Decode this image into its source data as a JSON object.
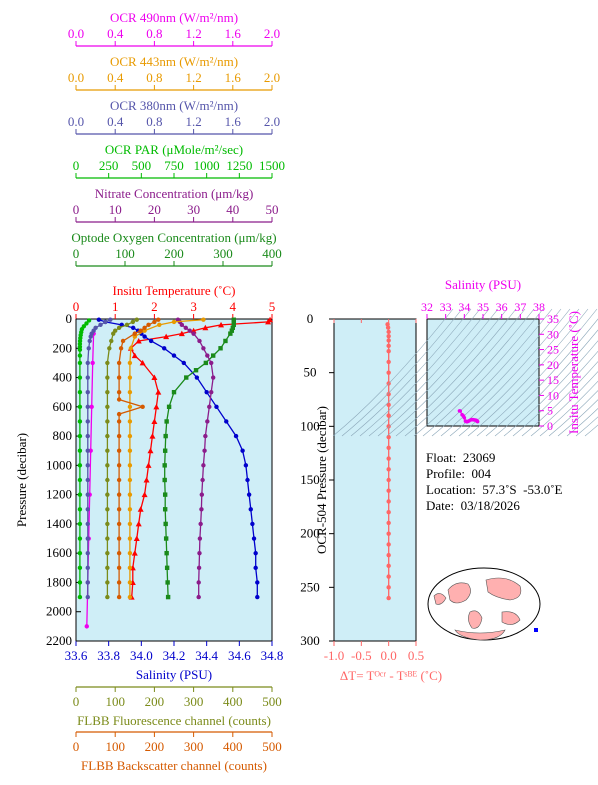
{
  "colors": {
    "panel_bg": "#cfeef7",
    "temperature": "#ff0000",
    "salinity": "#0000cc",
    "oxygen": "#1a8a1a",
    "nitrate": "#8b1c8b",
    "par": "#00bb00",
    "ocr380": "#5555aa",
    "ocr443": "#e89a00",
    "ocr490": "#ee00ee",
    "fluorescence": "#7b8b1a",
    "backscatter": "#d55a00",
    "delta_t": "#ff6666",
    "ts_points": "#ee00ee",
    "land": "#ffb0b0"
  },
  "chart_data": [
    {
      "type": "line",
      "name": "main-profile",
      "ylabel": "Pressure (decibar)",
      "ylim": [
        2200,
        0
      ],
      "yticks": [
        0,
        200,
        400,
        600,
        800,
        1000,
        1200,
        1400,
        1600,
        1800,
        2000,
        2200
      ],
      "axes": [
        {
          "key": "ocr490",
          "label": "OCR 490nm (W/m²/nm)",
          "range": [
            0,
            2
          ],
          "ticks": [
            "0.0",
            "0.4",
            "0.8",
            "1.2",
            "1.6",
            "2.0"
          ]
        },
        {
          "key": "ocr443",
          "label": "OCR 443nm (W/m²/nm)",
          "range": [
            0,
            2
          ],
          "ticks": [
            "0.0",
            "0.4",
            "0.8",
            "1.2",
            "1.6",
            "2.0"
          ]
        },
        {
          "key": "ocr380",
          "label": "OCR 380nm (W/m²/nm)",
          "range": [
            0,
            2
          ],
          "ticks": [
            "0.0",
            "0.4",
            "0.8",
            "1.2",
            "1.6",
            "2.0"
          ]
        },
        {
          "key": "par",
          "label": "OCR PAR (μMole/m²/sec)",
          "range": [
            0,
            1500
          ],
          "ticks": [
            "0",
            "250",
            "500",
            "750",
            "1000",
            "1250",
            "1500"
          ]
        },
        {
          "key": "nitrate",
          "label": "Nitrate Concentration (μm/kg)",
          "range": [
            0,
            50
          ],
          "ticks": [
            "0",
            "10",
            "20",
            "30",
            "40",
            "50"
          ]
        },
        {
          "key": "oxygen",
          "label": "Optode Oxygen Concentration (μm/kg)",
          "range": [
            0,
            400
          ],
          "ticks": [
            "0",
            "100",
            "200",
            "300",
            "400"
          ]
        },
        {
          "key": "temperature",
          "label": "Insitu Temperature (˚C)",
          "range": [
            0,
            5
          ],
          "ticks": [
            "0",
            "1",
            "2",
            "3",
            "4",
            "5"
          ]
        },
        {
          "key": "salinity",
          "label": "Salinity (PSU)",
          "range": [
            33.6,
            34.8
          ],
          "ticks": [
            "33.6",
            "33.8",
            "34.0",
            "34.2",
            "34.4",
            "34.6",
            "34.8"
          ]
        },
        {
          "key": "fluorescence",
          "label": "FLBB Fluorescence channel (counts)",
          "range": [
            0,
            500
          ],
          "ticks": [
            "0",
            "100",
            "200",
            "300",
            "400",
            "500"
          ]
        },
        {
          "key": "backscatter",
          "label": "FLBB Backscatter channel (counts)",
          "range": [
            0,
            500
          ],
          "ticks": [
            "0",
            "100",
            "200",
            "300",
            "400",
            "500"
          ]
        }
      ],
      "series": [
        {
          "key": "temperature",
          "marker": "triangle",
          "pressure": [
            5,
            20,
            40,
            60,
            80,
            100,
            120,
            150,
            200,
            250,
            300,
            400,
            500,
            600,
            700,
            800,
            900,
            1000,
            1100,
            1200,
            1300,
            1400,
            1500,
            1600,
            1700,
            1800,
            1900
          ],
          "values": [
            4.95,
            4.9,
            3.7,
            3.3,
            3.0,
            2.7,
            2.3,
            1.6,
            1.4,
            1.5,
            1.7,
            2.0,
            2.1,
            2.05,
            2.0,
            1.95,
            1.9,
            1.85,
            1.8,
            1.75,
            1.65,
            1.6,
            1.55,
            1.5,
            1.45,
            1.45,
            1.42
          ]
        },
        {
          "key": "salinity",
          "marker": "circle",
          "pressure": [
            5,
            20,
            40,
            60,
            80,
            100,
            120,
            150,
            200,
            250,
            300,
            400,
            500,
            600,
            700,
            800,
            900,
            1000,
            1100,
            1200,
            1300,
            1400,
            1500,
            1600,
            1700,
            1800,
            1900
          ],
          "values": [
            33.74,
            33.78,
            33.88,
            33.95,
            33.98,
            34.0,
            34.02,
            34.06,
            34.14,
            34.2,
            34.26,
            34.34,
            34.4,
            34.46,
            34.52,
            34.58,
            34.62,
            34.64,
            34.65,
            34.66,
            34.67,
            34.68,
            34.69,
            34.7,
            34.7,
            34.71,
            34.71
          ]
        },
        {
          "key": "oxygen",
          "marker": "square",
          "pressure": [
            5,
            20,
            40,
            60,
            80,
            100,
            150,
            200,
            250,
            300,
            350,
            400,
            500,
            600,
            700,
            800,
            900,
            1000,
            1100,
            1200,
            1300,
            1400,
            1500,
            1600,
            1700,
            1800,
            1900
          ],
          "values": [
            322,
            322,
            322,
            320,
            318,
            315,
            305,
            295,
            280,
            265,
            245,
            225,
            200,
            190,
            185,
            183,
            182,
            181,
            181,
            182,
            182,
            183,
            184,
            185,
            186,
            187,
            188
          ]
        },
        {
          "key": "nitrate",
          "marker": "circle",
          "pressure": [
            5,
            20,
            40,
            60,
            80,
            100,
            150,
            200,
            250,
            300,
            400,
            500,
            600,
            700,
            800,
            900,
            1000,
            1100,
            1200,
            1300,
            1400,
            1500,
            1600,
            1700,
            1800,
            1900
          ],
          "values": [
            26,
            26.5,
            27,
            28,
            29,
            30,
            31.5,
            32.5,
            33.5,
            34.5,
            35,
            34.5,
            34,
            33.5,
            33,
            32.8,
            32.5,
            32.3,
            32.1,
            32,
            31.8,
            31.6,
            31.5,
            31.4,
            31.3,
            31.3
          ]
        },
        {
          "key": "par",
          "marker": "circle",
          "pressure": [
            10,
            30,
            50,
            70,
            90,
            110,
            130,
            150,
            170,
            190,
            210,
            250,
            300,
            400,
            500,
            600,
            700,
            800,
            900,
            1000,
            1100,
            1200,
            1300,
            1400,
            1500,
            1600,
            1700,
            1800,
            1900
          ],
          "values": [
            100,
            80,
            60,
            45,
            40,
            36,
            33,
            31,
            30,
            30,
            30,
            30,
            30,
            30,
            30,
            30,
            30,
            30,
            30,
            30,
            30,
            30,
            30,
            30,
            30,
            30,
            30,
            30,
            30
          ]
        },
        {
          "key": "ocr490",
          "marker": "circle",
          "pressure": [
            100,
            300,
            600,
            900,
            1200,
            1500,
            1800,
            2100
          ],
          "values": [
            0.18,
            0.17,
            0.16,
            0.15,
            0.14,
            0.13,
            0.12,
            0.11
          ]
        },
        {
          "key": "ocr443",
          "marker": "circle",
          "pressure": [
            5,
            20,
            40,
            80,
            120,
            200,
            300,
            400,
            500,
            600,
            700,
            800,
            900,
            1000,
            1100,
            1200,
            1300,
            1400,
            1500,
            1600,
            1700,
            1800,
            1900
          ],
          "values": [
            1.3,
            1.0,
            0.85,
            0.7,
            0.6,
            0.56,
            0.55,
            0.55,
            0.55,
            0.55,
            0.55,
            0.55,
            0.55,
            0.55,
            0.55,
            0.55,
            0.55,
            0.55,
            0.55,
            0.55,
            0.55,
            0.55,
            0.55
          ]
        },
        {
          "key": "ocr380",
          "marker": "circle",
          "pressure": [
            5,
            20,
            40,
            60,
            80,
            100,
            120,
            150,
            200,
            300,
            400,
            500,
            600,
            700,
            800,
            900,
            1000,
            1100,
            1200,
            1300,
            1400,
            1500,
            1600,
            1700,
            1800,
            1900
          ],
          "values": [
            0.35,
            0.3,
            0.25,
            0.2,
            0.18,
            0.16,
            0.15,
            0.14,
            0.13,
            0.12,
            0.12,
            0.12,
            0.12,
            0.12,
            0.12,
            0.12,
            0.12,
            0.12,
            0.12,
            0.12,
            0.12,
            0.12,
            0.12,
            0.12,
            0.12,
            0.12
          ]
        },
        {
          "key": "fluorescence",
          "marker": "circle",
          "pressure": [
            5,
            20,
            40,
            60,
            80,
            100,
            150,
            200,
            300,
            400,
            500,
            600,
            700,
            800,
            900,
            1000,
            1100,
            1200,
            1300,
            1400,
            1500,
            1600,
            1700,
            1800,
            1900
          ],
          "values": [
            155,
            145,
            130,
            110,
            100,
            95,
            90,
            85,
            80,
            80,
            80,
            80,
            80,
            80,
            80,
            80,
            80,
            80,
            80,
            80,
            80,
            80,
            80,
            80,
            80
          ]
        },
        {
          "key": "backscatter",
          "marker": "circle",
          "pressure": [
            5,
            20,
            40,
            60,
            80,
            100,
            150,
            200,
            300,
            400,
            500,
            550,
            600,
            650,
            700,
            800,
            900,
            1000,
            1100,
            1200,
            1300,
            1400,
            1500,
            1600,
            1700,
            1800,
            1900
          ],
          "values": [
            210,
            200,
            185,
            175,
            165,
            150,
            120,
            115,
            110,
            110,
            110,
            110,
            170,
            110,
            110,
            110,
            110,
            110,
            110,
            110,
            110,
            110,
            110,
            110,
            110,
            110,
            110
          ]
        }
      ]
    },
    {
      "type": "line",
      "name": "delta-t",
      "ylabel": "OCR-504 Pressure (decibar)",
      "ylim": [
        300,
        0
      ],
      "yticks": [
        0,
        50,
        100,
        150,
        200,
        250,
        300
      ],
      "xlabel": "ΔT= Tᴼᶜʳ - Tˢᴮᴱ (˚C)",
      "xlim": [
        -1.0,
        0.5
      ],
      "xticks": [
        "-1.0",
        "-0.5",
        "0.0",
        "0.5"
      ],
      "pressure": [
        5,
        8,
        12,
        16,
        20,
        25,
        30,
        40,
        50,
        60,
        70,
        80,
        90,
        100,
        110,
        120,
        130,
        140,
        150,
        160,
        170,
        180,
        190,
        200,
        210,
        220,
        230,
        240,
        250,
        260
      ],
      "values": [
        -0.02,
        -0.01,
        0.0,
        0.0,
        0.0,
        0.0,
        0.0,
        0.0,
        0.0,
        0.0,
        0.0,
        0.0,
        0.0,
        0.0,
        0.0,
        0.0,
        0.0,
        0.0,
        0.0,
        0.0,
        0.0,
        0.0,
        0.0,
        0.0,
        0.0,
        0.0,
        0.0,
        0.0,
        0.0,
        0.0
      ]
    },
    {
      "type": "scatter",
      "name": "ts-diagram",
      "xlabel": "Salinity (PSU)",
      "ylabel": "Insitu Temperature (˚C)",
      "xlim": [
        32,
        38
      ],
      "ylim": [
        0,
        35
      ],
      "xticks": [
        "32",
        "33",
        "34",
        "35",
        "36",
        "37",
        "38"
      ],
      "yticks": [
        "0",
        "5",
        "10",
        "15",
        "20",
        "25",
        "30",
        "35"
      ],
      "points": [
        [
          33.74,
          4.95
        ],
        [
          33.78,
          4.9
        ],
        [
          33.88,
          3.7
        ],
        [
          33.95,
          3.3
        ],
        [
          34.0,
          2.7
        ],
        [
          34.06,
          1.6
        ],
        [
          34.14,
          1.4
        ],
        [
          34.2,
          1.5
        ],
        [
          34.26,
          1.7
        ],
        [
          34.34,
          2.0
        ],
        [
          34.4,
          2.1
        ],
        [
          34.46,
          2.05
        ],
        [
          34.52,
          2.0
        ],
        [
          34.58,
          1.95
        ],
        [
          34.64,
          1.85
        ],
        [
          34.66,
          1.75
        ],
        [
          34.68,
          1.6
        ],
        [
          34.7,
          1.5
        ],
        [
          34.71,
          1.42
        ]
      ]
    }
  ],
  "info": {
    "float": "Float:  23069",
    "profile": "Profile:  004",
    "location": "Location:  57.3˚S  -53.0˚E",
    "date": "Date:  03/18/2026"
  },
  "map": {
    "marker_color": "#0000ff"
  }
}
